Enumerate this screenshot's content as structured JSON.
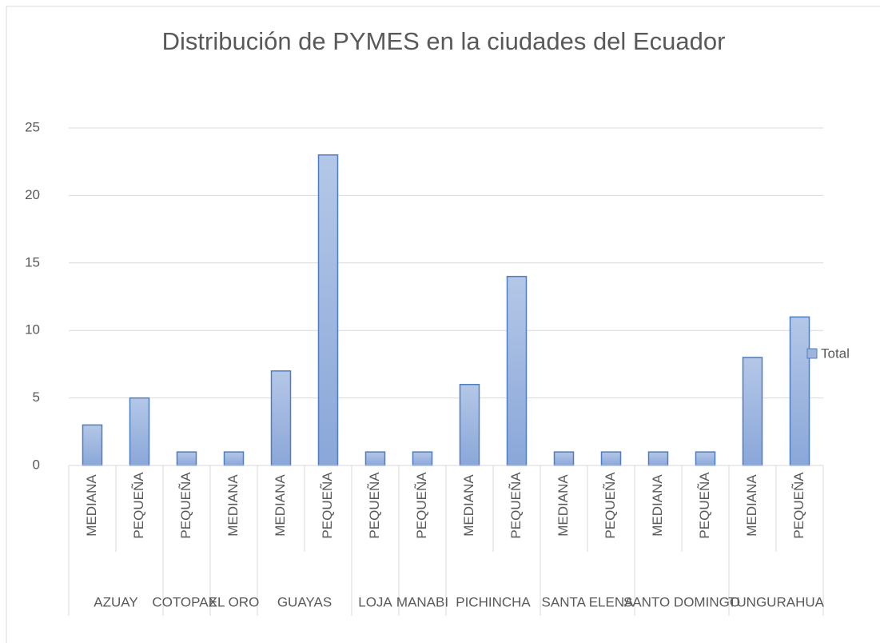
{
  "chart_data": {
    "type": "bar",
    "title": "Distribución de PYMES en la ciudades del Ecuador",
    "categories": [
      [
        "AZUAY",
        "MEDIANA"
      ],
      [
        null,
        "PEQUEÑA"
      ],
      [
        "COTOPAXI",
        "PEQUEÑA"
      ],
      [
        "EL ORO",
        "MEDIANA"
      ],
      [
        "GUAYAS",
        "MEDIANA"
      ],
      [
        null,
        "PEQUEÑA"
      ],
      [
        "LOJA",
        "PEQUEÑA"
      ],
      [
        "MANABI",
        "PEQUEÑA"
      ],
      [
        "PICHINCHA",
        "MEDIANA"
      ],
      [
        null,
        "PEQUEÑA"
      ],
      [
        "SANTA ELENA",
        "MEDIANA"
      ],
      [
        null,
        "PEQUEÑA"
      ],
      [
        "SANTO DOMINGO",
        "MEDIANA"
      ],
      [
        null,
        "PEQUEÑA"
      ],
      [
        "TUNGURAHUA",
        "MEDIANA"
      ],
      [
        null,
        "PEQUEÑA"
      ]
    ],
    "series": [
      {
        "name": "Total",
        "color": "#9db5de",
        "values": [
          3,
          5,
          1,
          1,
          7,
          23,
          1,
          1,
          6,
          14,
          1,
          1,
          1,
          1,
          8,
          11
        ]
      }
    ],
    "ylim": [
      0,
      25
    ],
    "yticks": [
      0,
      5,
      10,
      15,
      20,
      25
    ],
    "grid": true,
    "legend": "right"
  }
}
